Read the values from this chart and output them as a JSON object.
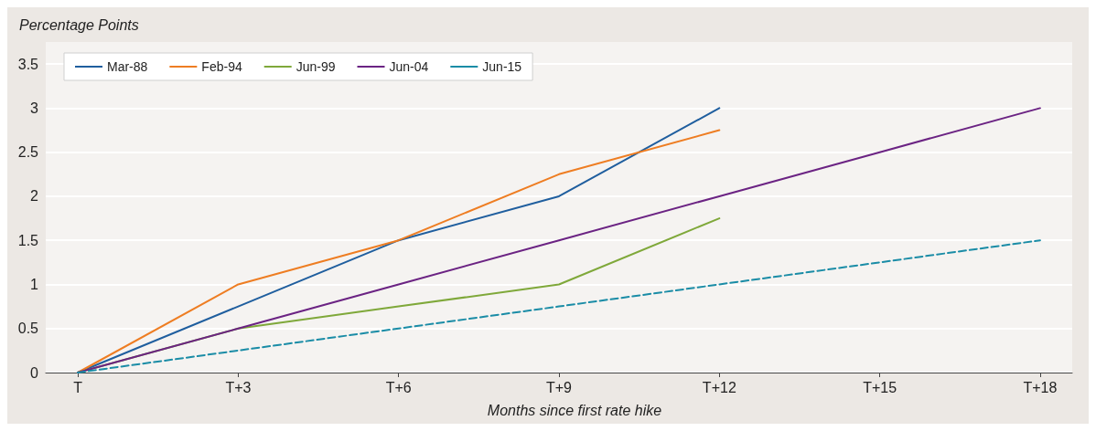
{
  "chart_data": {
    "type": "line",
    "ylabel": "Percentage Points",
    "xlabel": "Months since first rate hike",
    "categories": [
      "T",
      "T+3",
      "T+6",
      "T+9",
      "T+12",
      "T+15",
      "T+18"
    ],
    "ylim": [
      0,
      3.75
    ],
    "yticks": [
      0,
      0.5,
      1,
      1.5,
      2,
      2.5,
      3,
      3.5
    ],
    "grid": "y",
    "legend": "top left",
    "marker": "none",
    "series": [
      {
        "name": "Mar-88",
        "color": "#1f5e9e",
        "values": [
          0,
          0.75,
          1.5,
          2,
          3,
          null,
          null
        ]
      },
      {
        "name": "Feb-94",
        "color": "#ee7d22",
        "values": [
          0,
          1,
          1.5,
          2.25,
          2.75,
          null,
          null
        ]
      },
      {
        "name": "Jun-99",
        "color": "#7fa83a",
        "values": [
          0,
          0.5,
          0.75,
          1,
          1.75,
          null,
          null
        ]
      },
      {
        "name": "Jun-04",
        "color": "#6b2383",
        "values": [
          0,
          0.5,
          1,
          1.5,
          2,
          2.5,
          3
        ]
      },
      {
        "name": "Jun-15",
        "color": "#1a8ca6",
        "line_style": "dashed",
        "values": [
          0,
          0.25,
          0.5,
          0.75,
          1,
          1.25,
          1.5
        ]
      }
    ]
  }
}
